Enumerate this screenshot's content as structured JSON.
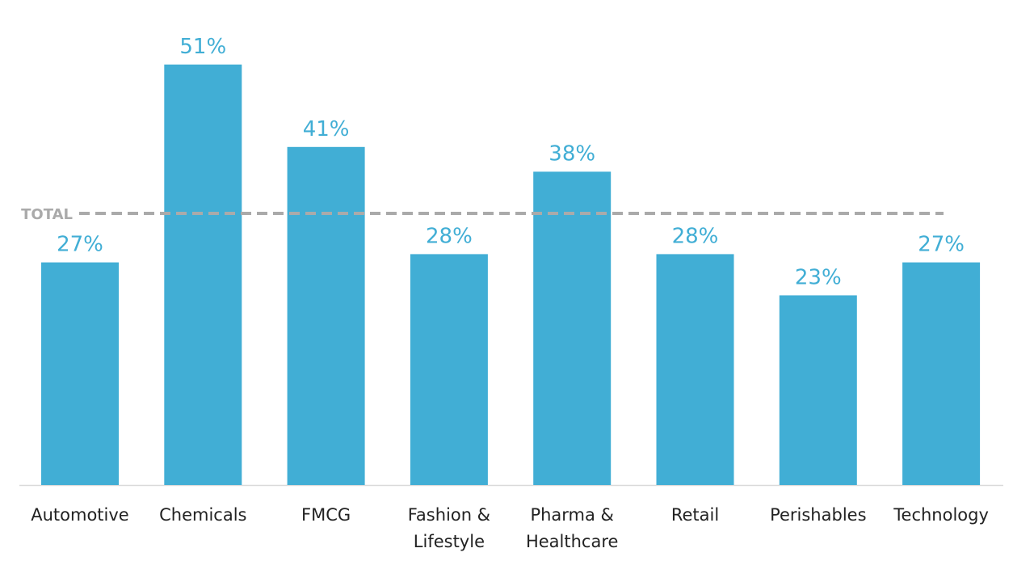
{
  "chart_data": {
    "type": "bar",
    "title": "",
    "xlabel": "",
    "ylabel": "",
    "ylim": [
      0,
      51
    ],
    "grid": false,
    "categories": [
      [
        "Automotive"
      ],
      [
        "Chemicals"
      ],
      [
        "FMCG"
      ],
      [
        "Fashion &",
        "Lifestyle"
      ],
      [
        "Pharma &",
        "Healthcare"
      ],
      [
        "Retail"
      ],
      [
        "Perishables"
      ],
      [
        "Technology"
      ]
    ],
    "values": [
      27,
      51,
      41,
      28,
      38,
      28,
      23,
      27
    ],
    "value_labels": [
      "27%",
      "51%",
      "41%",
      "28%",
      "38%",
      "28%",
      "23%",
      "27%"
    ],
    "reference_line": {
      "label": "TOTAL",
      "value": 33
    },
    "colors": {
      "bar": "#41AED5",
      "reference": "#AAAAAA",
      "axis": "#D9D9D9",
      "text": "#222222"
    }
  }
}
